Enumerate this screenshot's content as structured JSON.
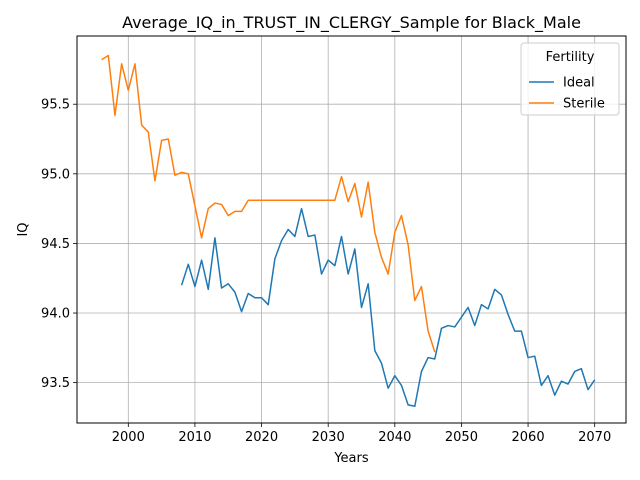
{
  "chart_data": {
    "type": "line",
    "title": "Average_IQ_in_TRUST_IN_CLERGY_Sample for Black_Male",
    "xlabel": "Years",
    "ylabel": "IQ",
    "xlim": [
      1992.3,
      2074.7
    ],
    "ylim": [
      93.21,
      95.99
    ],
    "xticks": [
      2000,
      2010,
      2020,
      2030,
      2040,
      2050,
      2060,
      2070
    ],
    "yticks": [
      93.5,
      94.0,
      94.5,
      95.0,
      95.5
    ],
    "ytick_labels": [
      "93.5",
      "94.0",
      "94.5",
      "95.0",
      "95.5"
    ],
    "grid": true,
    "legend": {
      "title": "Fertility",
      "position": "top-right"
    },
    "series": [
      {
        "name": "Ideal",
        "color": "#1f77b4",
        "x": [
          2008,
          2009,
          2010,
          2011,
          2012,
          2013,
          2014,
          2015,
          2016,
          2017,
          2018,
          2019,
          2020,
          2021,
          2022,
          2023,
          2024,
          2025,
          2026,
          2027,
          2028,
          2029,
          2030,
          2031,
          2032,
          2033,
          2034,
          2035,
          2036,
          2037,
          2038,
          2039,
          2040,
          2041,
          2042,
          2043,
          2044,
          2045,
          2046,
          2047,
          2048,
          2049,
          2050,
          2051,
          2052,
          2053,
          2054,
          2055,
          2056,
          2057,
          2058,
          2059,
          2060,
          2061,
          2062,
          2063,
          2064,
          2065,
          2066,
          2067,
          2068,
          2069,
          2070
        ],
        "values": [
          94.2,
          94.35,
          94.19,
          94.38,
          94.17,
          94.54,
          94.18,
          94.21,
          94.15,
          94.01,
          94.14,
          94.11,
          94.11,
          94.06,
          94.39,
          94.52,
          94.6,
          94.55,
          94.75,
          94.55,
          94.56,
          94.28,
          94.38,
          94.34,
          94.55,
          94.28,
          94.46,
          94.04,
          94.21,
          93.73,
          93.64,
          93.46,
          93.55,
          93.48,
          93.34,
          93.33,
          93.58,
          93.68,
          93.67,
          93.89,
          93.91,
          93.9,
          93.97,
          94.04,
          93.91,
          94.06,
          94.03,
          94.17,
          94.13,
          93.99,
          93.87,
          93.87,
          93.68,
          93.69,
          93.48,
          93.55,
          93.41,
          93.51,
          93.49,
          93.58,
          93.6,
          93.45,
          93.52
        ]
      },
      {
        "name": "Sterile",
        "color": "#ff7f0e",
        "x": [
          1996,
          1997,
          1998,
          1999,
          2000,
          2001,
          2002,
          2003,
          2004,
          2005,
          2006,
          2007,
          2008,
          2009,
          2010,
          2011,
          2012,
          2013,
          2014,
          2015,
          2016,
          2017,
          2018,
          2019,
          2020,
          2021,
          2022,
          2023,
          2024,
          2025,
          2026,
          2027,
          2028,
          2029,
          2030,
          2031,
          2032,
          2033,
          2034,
          2035,
          2036,
          2037,
          2038,
          2039,
          2040,
          2041,
          2042,
          2043,
          2044,
          2045,
          2046
        ],
        "values": [
          95.82,
          95.85,
          95.42,
          95.79,
          95.6,
          95.79,
          95.35,
          95.3,
          94.95,
          95.24,
          95.25,
          94.99,
          95.01,
          95.0,
          94.77,
          94.54,
          94.75,
          94.79,
          94.78,
          94.7,
          94.73,
          94.73,
          94.81,
          94.81,
          94.81,
          94.81,
          94.81,
          94.81,
          94.81,
          94.81,
          94.81,
          94.81,
          94.81,
          94.81,
          94.81,
          94.81,
          94.98,
          94.8,
          94.93,
          94.69,
          94.94,
          94.58,
          94.4,
          94.28,
          94.58,
          94.7,
          94.49,
          94.09,
          94.19,
          93.87,
          93.72
        ]
      }
    ]
  }
}
